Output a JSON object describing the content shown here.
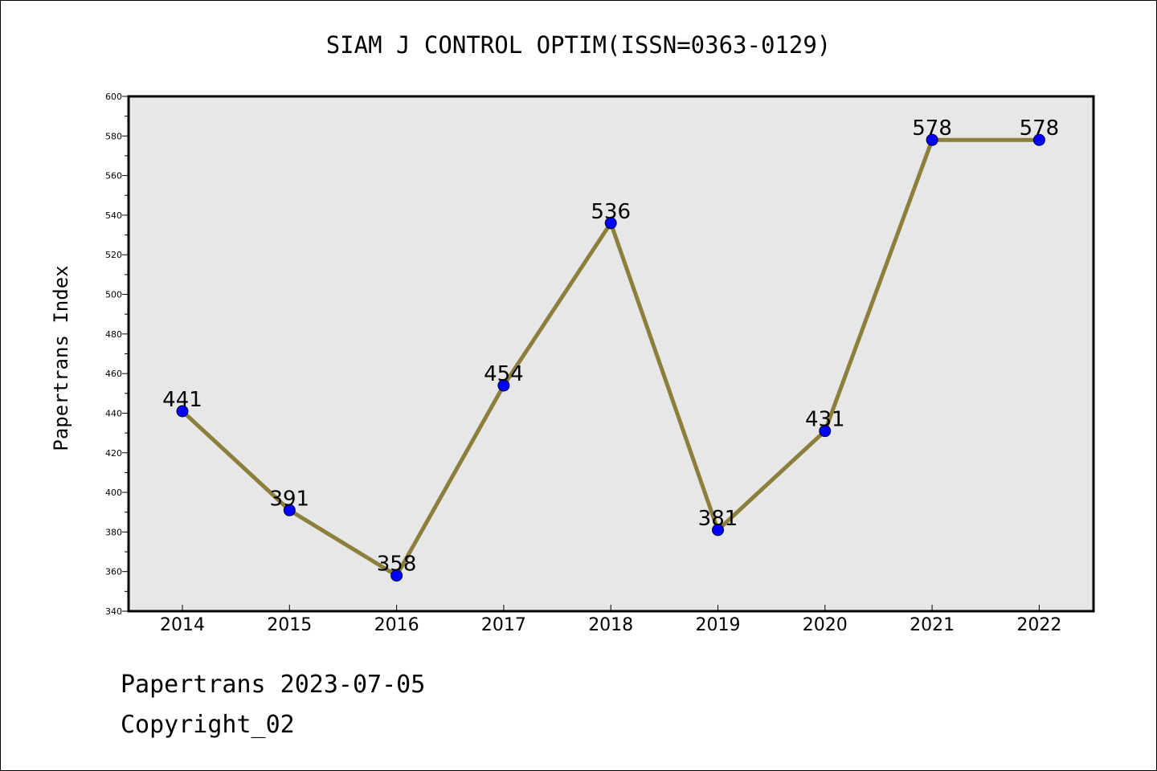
{
  "chart_data": {
    "type": "line",
    "title": "SIAM J CONTROL OPTIM(ISSN=0363-0129)",
    "xlabel": "",
    "ylabel": "Papertrans Index",
    "categories": [
      "2014",
      "2015",
      "2016",
      "2017",
      "2018",
      "2019",
      "2020",
      "2021",
      "2022"
    ],
    "values": [
      441,
      391,
      358,
      454,
      536,
      381,
      431,
      578,
      578
    ],
    "data_labels": [
      "441",
      "391",
      "358",
      "454",
      "536",
      "381",
      "431",
      "578",
      "578"
    ],
    "ylim": [
      340,
      600
    ],
    "yticks": [
      340,
      360,
      380,
      400,
      420,
      440,
      460,
      480,
      500,
      520,
      540,
      560,
      580,
      600
    ],
    "grid": false,
    "legend": "none",
    "colors": {
      "line": "#8c7f3c",
      "marker": "#0000ff",
      "plot_bg": "#e7e7e7"
    }
  },
  "footer": {
    "line1": "Papertrans 2023-07-05",
    "line2": "Copyright_02"
  }
}
